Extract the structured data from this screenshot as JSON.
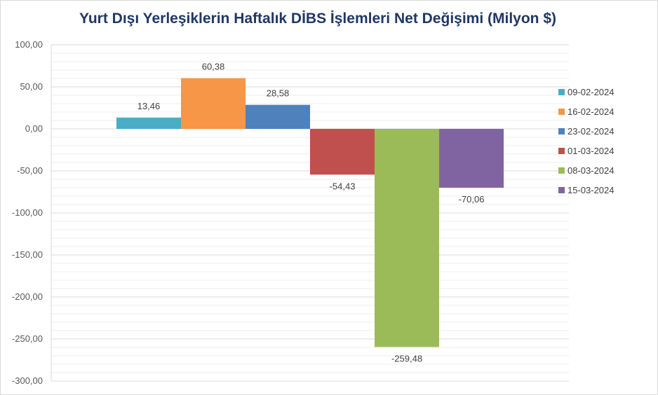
{
  "chart_data": {
    "type": "bar",
    "title": "Yurt Dışı Yerleşiklerin Haftalık DİBS İşlemleri Net Değişimi (Milyon $)",
    "xlabel": "",
    "ylabel": "",
    "ylim": [
      -300,
      100
    ],
    "y_ticks": [
      100,
      50,
      0,
      -50,
      -100,
      -150,
      -200,
      -250,
      -300
    ],
    "y_tick_labels": [
      "100,00",
      "50,00",
      "0,00",
      "-50,00",
      "-100,00",
      "-150,00",
      "-200,00",
      "-250,00",
      "-300,00"
    ],
    "grid": true,
    "minor_grid": true,
    "legend_position": "right",
    "series": [
      {
        "name": "09-02-2024",
        "value": 13.46,
        "label": "13,46",
        "color": "#4bacc6"
      },
      {
        "name": "16-02-2024",
        "value": 60.38,
        "label": "60,38",
        "color": "#f79646"
      },
      {
        "name": "23-02-2024",
        "value": 28.58,
        "label": "28,58",
        "color": "#4f81bd"
      },
      {
        "name": "01-03-2024",
        "value": -54.43,
        "label": "-54,43",
        "color": "#c0504d"
      },
      {
        "name": "08-03-2024",
        "value": -259.48,
        "label": "-259,48",
        "color": "#9bbb59"
      },
      {
        "name": "15-03-2024",
        "value": -70.06,
        "label": "-70,06",
        "color": "#8064a2"
      }
    ]
  }
}
